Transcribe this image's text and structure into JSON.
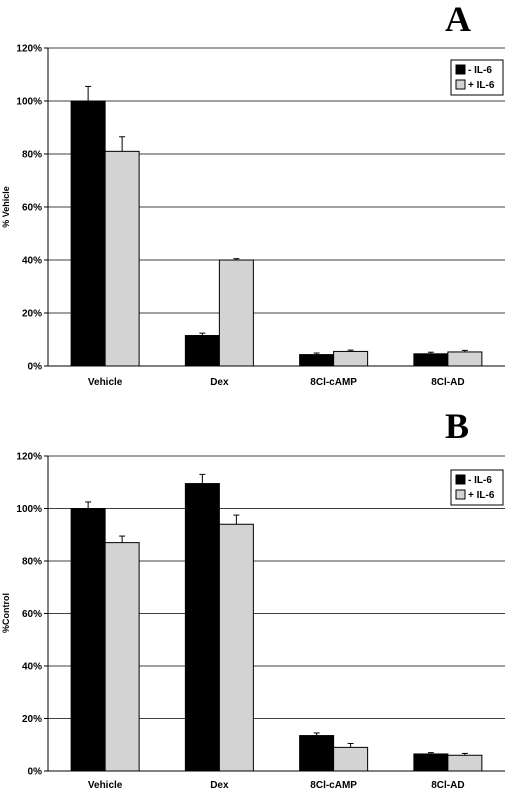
{
  "chart_data": [
    {
      "type": "bar",
      "panel_label": "A",
      "categories": [
        "Vehicle",
        "Dex",
        "8Cl-cAMP",
        "8Cl-AD"
      ],
      "series": [
        {
          "name": "- IL-6",
          "color": "#000000",
          "values": [
            100,
            11.5,
            4.3,
            4.6
          ],
          "errors": [
            5.5,
            0.9,
            0.6,
            0.6
          ]
        },
        {
          "name": "+ IL-6",
          "color": "#d3d3d3",
          "values": [
            81,
            40,
            5.5,
            5.3
          ],
          "errors": [
            5.5,
            0.5,
            0.5,
            0.6
          ]
        }
      ],
      "ylabel": "% Vehicle",
      "ylim": [
        0,
        120
      ],
      "yticks": [
        "0%",
        "20%",
        "40%",
        "60%",
        "80%",
        "100%",
        "120%"
      ],
      "grid": true,
      "legend_position": "top-right"
    },
    {
      "type": "bar",
      "panel_label": "B",
      "categories": [
        "Vehicle",
        "Dex",
        "8Cl-cAMP",
        "8Cl-AD"
      ],
      "series": [
        {
          "name": "- IL-6",
          "color": "#000000",
          "values": [
            100,
            109.5,
            13.5,
            6.5
          ],
          "errors": [
            2.5,
            3.5,
            1.0,
            0.5
          ]
        },
        {
          "name": "+ IL-6",
          "color": "#d3d3d3",
          "values": [
            87,
            94,
            9,
            6
          ],
          "errors": [
            2.5,
            3.5,
            1.5,
            0.7
          ]
        }
      ],
      "ylabel": "%Control",
      "ylim": [
        0,
        120
      ],
      "yticks": [
        "0%",
        "20%",
        "40%",
        "60%",
        "80%",
        "100%",
        "120%"
      ],
      "grid": true,
      "legend_position": "top-right"
    }
  ]
}
